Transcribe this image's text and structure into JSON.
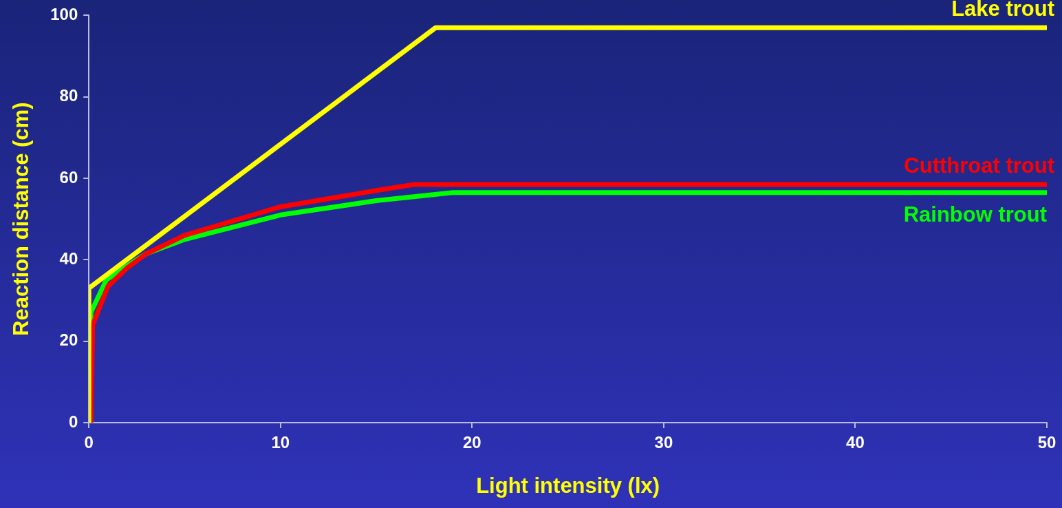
{
  "chart_data": {
    "type": "line",
    "xlabel": "Light intensity (lx)",
    "ylabel": "Reaction distance (cm)",
    "xlim": [
      0,
      50
    ],
    "ylim": [
      0,
      100
    ],
    "xticks": [
      0,
      10,
      20,
      30,
      40,
      50
    ],
    "yticks": [
      0,
      20,
      40,
      60,
      80,
      100
    ],
    "grid": false,
    "legend": false,
    "marker": "none",
    "line_style": "solid",
    "series": [
      {
        "name": "Lake trout",
        "color": "#ffff00",
        "x": [
          0,
          0,
          18.1,
          50
        ],
        "values": [
          0,
          33,
          97,
          97
        ]
      },
      {
        "name": "Cutthroat trout",
        "color": "#ff0000",
        "x": [
          0.1,
          0.2,
          1,
          2,
          3,
          5,
          10,
          15,
          17,
          50
        ],
        "values": [
          0,
          24,
          33.5,
          38,
          41.5,
          46,
          53,
          57,
          58.5,
          58.5
        ]
      },
      {
        "name": "Rainbow trout",
        "color": "#00ff00",
        "x": [
          0.1,
          0.1,
          0.9,
          2,
          3,
          5,
          10,
          15,
          19,
          50
        ],
        "values": [
          0,
          27,
          35,
          38.5,
          41.5,
          45,
          51,
          54.5,
          56.5,
          56.5
        ]
      }
    ]
  }
}
